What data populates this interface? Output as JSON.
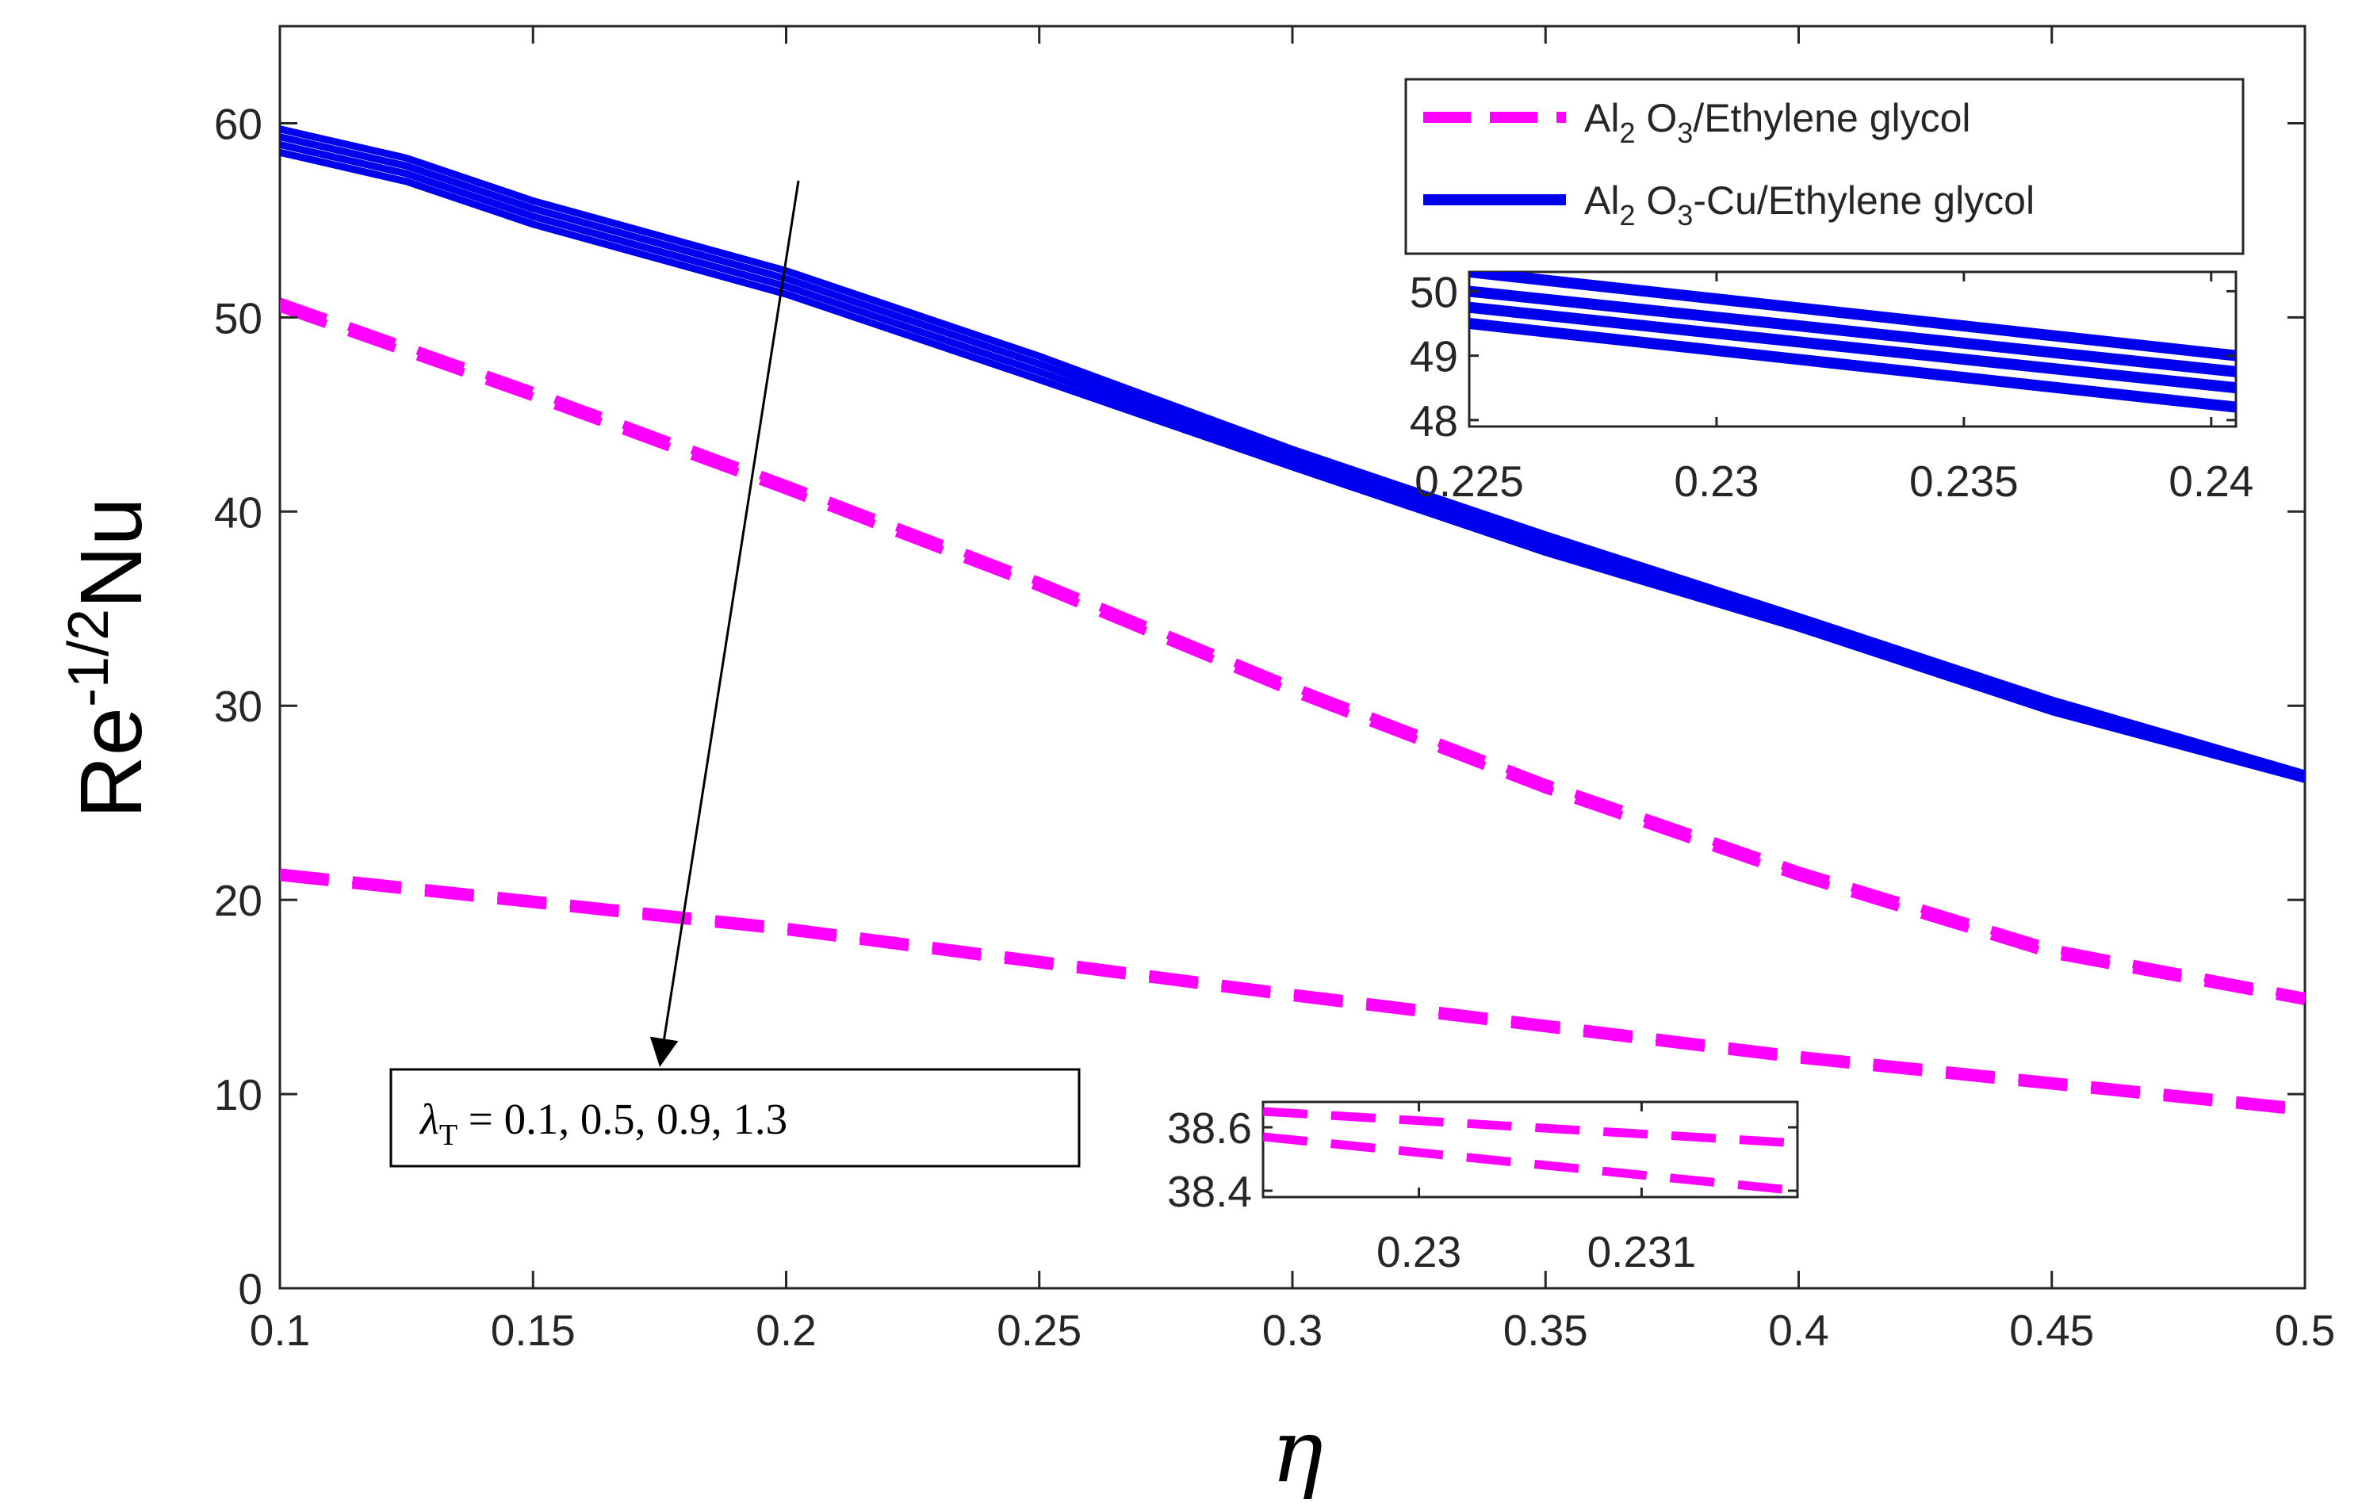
{
  "chart_data": {
    "type": "line",
    "title": "",
    "xlabel": "η",
    "ylabel": {
      "base": "Re",
      "superscript": "-1/2",
      "tail": "Nu"
    },
    "xlim": [
      0.1,
      0.5
    ],
    "ylim": [
      0,
      65
    ],
    "x_ticks": [
      0.1,
      0.15,
      0.2,
      0.25,
      0.3,
      0.35,
      0.4,
      0.45,
      0.5
    ],
    "x_tick_labels": [
      "0.1",
      "0.15",
      "0.2",
      "0.25",
      "0.3",
      "0.35",
      "0.4",
      "0.45",
      "0.5"
    ],
    "y_ticks": [
      0,
      10,
      20,
      30,
      40,
      50,
      60
    ],
    "y_tick_labels": [
      "0",
      "10",
      "20",
      "30",
      "40",
      "50",
      "60"
    ],
    "grid": false,
    "legend_position": "top-right",
    "colors": {
      "magenta": "#ff00ff",
      "blue": "#0000ee",
      "axis": "#262626"
    },
    "legend": [
      {
        "key": "al2o3",
        "parts": [
          "Al",
          "2",
          " O",
          "3",
          "/Ethylene glycol"
        ],
        "style": "dashed",
        "color": "#ff00ff"
      },
      {
        "key": "hybrid",
        "parts": [
          "Al",
          "2",
          " O",
          "3",
          "-Cu/Ethylene glycol"
        ],
        "style": "solid",
        "color": "#0000ee"
      }
    ],
    "annotation": {
      "symbol": "λ",
      "subscript": "T",
      "text": " = 0.1, 0.5, 0.9, 1.3"
    },
    "series": [
      {
        "name": "Al2O3-Cu/Ethylene glycol, λT=0.1",
        "style": "solid",
        "color": "#0000ee",
        "x": [
          0.1,
          0.125,
          0.15,
          0.2,
          0.25,
          0.3,
          0.35,
          0.4,
          0.45,
          0.5
        ],
        "y": [
          59.7,
          58.2,
          56.0,
          52.4,
          48.0,
          43.2,
          38.8,
          34.6,
          30.3,
          26.5
        ]
      },
      {
        "name": "Al2O3-Cu/Ethylene glycol, λT=0.5",
        "style": "solid",
        "color": "#0000ee",
        "x": [
          0.1,
          0.125,
          0.15,
          0.2,
          0.25,
          0.3,
          0.35,
          0.4,
          0.45,
          0.5
        ],
        "y": [
          59.3,
          57.8,
          55.6,
          52.0,
          47.6,
          42.9,
          38.5,
          34.4,
          30.1,
          26.4
        ]
      },
      {
        "name": "Al2O3-Cu/Ethylene glycol, λT=0.9",
        "style": "solid",
        "color": "#0000ee",
        "x": [
          0.1,
          0.125,
          0.15,
          0.2,
          0.25,
          0.3,
          0.35,
          0.4,
          0.45,
          0.5
        ],
        "y": [
          58.9,
          57.4,
          55.2,
          51.6,
          47.2,
          42.6,
          38.2,
          34.2,
          29.9,
          26.3
        ]
      },
      {
        "name": "Al2O3-Cu/Ethylene glycol, λT=1.3",
        "style": "solid",
        "color": "#0000ee",
        "x": [
          0.1,
          0.125,
          0.15,
          0.2,
          0.25,
          0.3,
          0.35,
          0.4,
          0.45,
          0.5
        ],
        "y": [
          58.5,
          57.0,
          54.8,
          51.2,
          46.8,
          42.3,
          37.9,
          34.0,
          29.7,
          26.2
        ]
      },
      {
        "name": "Al2O3/Ethylene glycol, λT=0.1",
        "style": "dashed",
        "color": "#ff00ff",
        "x": [
          0.1,
          0.15,
          0.2,
          0.25,
          0.3,
          0.35,
          0.4,
          0.45,
          0.5
        ],
        "y": [
          50.8,
          46.2,
          41.4,
          36.4,
          31.0,
          26.0,
          21.5,
          17.5,
          15.0
        ]
      },
      {
        "name": "Al2O3/Ethylene glycol, λT=0.5",
        "style": "dashed",
        "color": "#ff00ff",
        "x": [
          0.1,
          0.15,
          0.2,
          0.25,
          0.3,
          0.35,
          0.4,
          0.45,
          0.5
        ],
        "y": [
          50.5,
          45.9,
          41.1,
          36.1,
          30.7,
          25.7,
          21.2,
          17.2,
          14.8
        ]
      },
      {
        "name": "Al2O3/Ethylene glycol, λT=0.9",
        "style": "dashed",
        "color": "#ff00ff",
        "x": [
          0.1,
          0.2,
          0.3,
          0.4,
          0.5
        ],
        "y": [
          21.4,
          18.6,
          15.2,
          12.0,
          9.3
        ]
      },
      {
        "name": "Al2O3/Ethylene glycol, λT=1.3",
        "style": "dashed",
        "color": "#ff00ff",
        "x": [
          0.1,
          0.2,
          0.3,
          0.4,
          0.5
        ],
        "y": [
          21.2,
          18.4,
          15.0,
          11.8,
          9.1
        ]
      }
    ],
    "insets": [
      {
        "key": "inset-blue",
        "xlim": [
          0.225,
          0.2405
        ],
        "ylim": [
          47.9,
          50.3
        ],
        "x_ticks": [
          0.225,
          0.23,
          0.235,
          0.24
        ],
        "x_tick_labels": [
          "0.225",
          "0.23",
          "0.235",
          "0.24"
        ],
        "y_ticks": [
          48,
          49,
          50
        ],
        "y_tick_labels": [
          "48",
          "49",
          "50"
        ],
        "series": [
          {
            "style": "solid",
            "color": "#0000ee",
            "x": [
              0.225,
              0.2405
            ],
            "y": [
              50.3,
              49.0
            ]
          },
          {
            "style": "solid",
            "color": "#0000ee",
            "x": [
              0.225,
              0.2405
            ],
            "y": [
              50.0,
              48.75
            ]
          },
          {
            "style": "solid",
            "color": "#0000ee",
            "x": [
              0.225,
              0.2405
            ],
            "y": [
              49.75,
              48.5
            ]
          },
          {
            "style": "solid",
            "color": "#0000ee",
            "x": [
              0.225,
              0.2405
            ],
            "y": [
              49.5,
              48.2
            ]
          }
        ]
      },
      {
        "key": "inset-magenta",
        "xlim": [
          0.2293,
          0.2317
        ],
        "ylim": [
          38.38,
          38.68
        ],
        "x_ticks": [
          0.23,
          0.231
        ],
        "x_tick_labels": [
          "0.23",
          "0.231"
        ],
        "y_ticks": [
          38.4,
          38.6
        ],
        "y_tick_labels": [
          "38.4",
          "38.6"
        ],
        "series": [
          {
            "style": "dashed",
            "color": "#ff00ff",
            "x": [
              0.2293,
              0.2317
            ],
            "y": [
              38.65,
              38.55
            ]
          },
          {
            "style": "dashed",
            "color": "#ff00ff",
            "x": [
              0.2293,
              0.2317
            ],
            "y": [
              38.57,
              38.4
            ]
          }
        ]
      }
    ]
  }
}
